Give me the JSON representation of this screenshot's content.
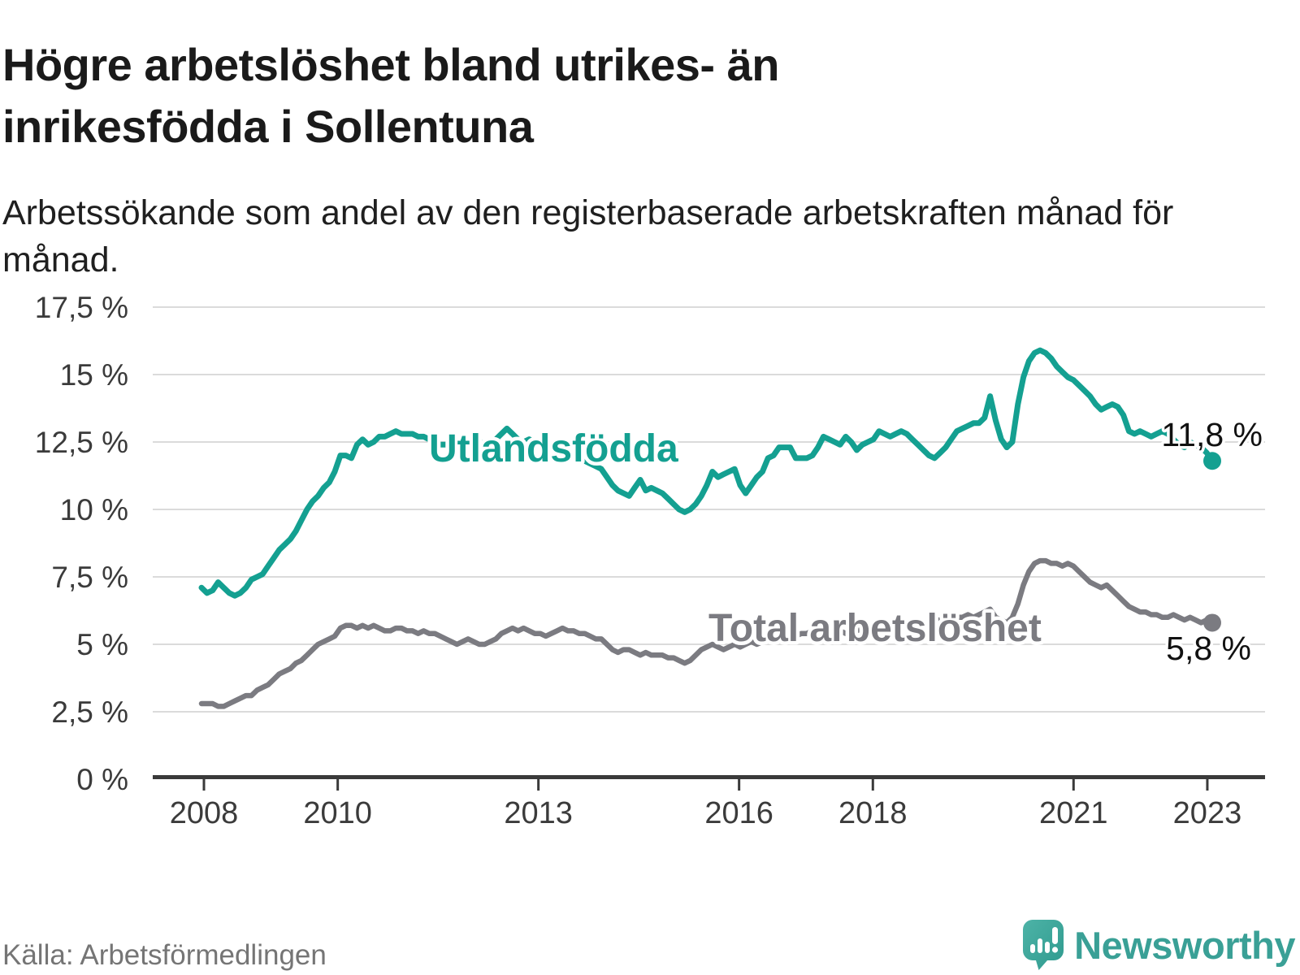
{
  "header": {
    "title": "Högre arbetslöshet bland utrikes- än inrikesfödda i Sollentuna",
    "subtitle": "Arbetssökande som andel av den registerbaserade arbetskraften månad för månad."
  },
  "footer": {
    "source": "Källa: Arbetsförmedlingen",
    "brand": "Newsworthy",
    "brand_icon": "newsworthy-speech-bubble-bar-chart-icon"
  },
  "colors": {
    "foreign_born_line": "#14a091",
    "total_line": "#7b7b81",
    "grid": "#dbdbdb",
    "axis": "#3a3a3a",
    "tick_text": "#3b3b3b",
    "heading_text": "#1a1a1a",
    "value_label_text": "#111111",
    "source_text": "#757575",
    "brand_teal": "#3aa096"
  },
  "chart_data": {
    "type": "line",
    "title": "Högre arbetslöshet bland utrikes- än inrikesfödda i Sollentuna",
    "subtitle": "Arbetssökande som andel av den registerbaserade arbetskraften månad för månad.",
    "frequency": "monthly",
    "x_start": "2008-01",
    "x_end": "2023-03",
    "ylim": [
      0,
      17.5
    ],
    "grid": "horizontal",
    "legend_position": "inline-labels",
    "y_ticks": [
      {
        "value": 0,
        "label": "0 %"
      },
      {
        "value": 2.5,
        "label": "2,5 %"
      },
      {
        "value": 5,
        "label": "5 %"
      },
      {
        "value": 7.5,
        "label": "7,5 %"
      },
      {
        "value": 10,
        "label": "10 %"
      },
      {
        "value": 12.5,
        "label": "12,5 %"
      },
      {
        "value": 15,
        "label": "15 %"
      },
      {
        "value": 17.5,
        "label": "17,5 %"
      }
    ],
    "x_ticks": [
      {
        "year": 2008,
        "label": "2008"
      },
      {
        "year": 2010,
        "label": "2010"
      },
      {
        "year": 2013,
        "label": "2013"
      },
      {
        "year": 2016,
        "label": "2016"
      },
      {
        "year": 2018,
        "label": "2018"
      },
      {
        "year": 2021,
        "label": "2021"
      },
      {
        "year": 2023,
        "label": "2023"
      }
    ],
    "series": [
      {
        "name": "Utlandsfödda",
        "color": "#14a091",
        "end_label": "11,8 %",
        "last_value": 11.8,
        "values": [
          7.1,
          6.9,
          7.0,
          7.3,
          7.1,
          6.9,
          6.8,
          6.9,
          7.1,
          7.4,
          7.5,
          7.6,
          7.9,
          8.2,
          8.5,
          8.7,
          8.9,
          9.2,
          9.6,
          10.0,
          10.3,
          10.5,
          10.8,
          11.0,
          11.4,
          12.0,
          12.0,
          11.9,
          12.4,
          12.6,
          12.4,
          12.5,
          12.7,
          12.7,
          12.8,
          12.9,
          12.8,
          12.8,
          12.8,
          12.7,
          12.7,
          12.6,
          12.5,
          12.4,
          12.4,
          12.5,
          12.4,
          12.4,
          12.4,
          12.3,
          12.4,
          12.5,
          12.4,
          12.6,
          12.8,
          13.0,
          12.8,
          12.6,
          12.5,
          12.6,
          12.5,
          12.4,
          12.3,
          12.4,
          12.3,
          12.2,
          12.1,
          12.0,
          11.9,
          11.8,
          11.7,
          11.6,
          11.5,
          11.2,
          10.9,
          10.7,
          10.6,
          10.5,
          10.8,
          11.1,
          10.7,
          10.8,
          10.7,
          10.6,
          10.4,
          10.2,
          10.0,
          9.9,
          10.0,
          10.2,
          10.5,
          10.9,
          11.4,
          11.2,
          11.3,
          11.4,
          11.5,
          10.9,
          10.6,
          10.9,
          11.2,
          11.4,
          11.9,
          12.0,
          12.3,
          12.3,
          12.3,
          11.9,
          11.9,
          11.9,
          12.0,
          12.3,
          12.7,
          12.6,
          12.5,
          12.4,
          12.7,
          12.5,
          12.2,
          12.4,
          12.5,
          12.6,
          12.9,
          12.8,
          12.7,
          12.8,
          12.9,
          12.8,
          12.6,
          12.4,
          12.2,
          12.0,
          11.9,
          12.1,
          12.3,
          12.6,
          12.9,
          13.0,
          13.1,
          13.2,
          13.2,
          13.4,
          14.2,
          13.3,
          12.6,
          12.3,
          12.5,
          13.9,
          14.9,
          15.5,
          15.8,
          15.9,
          15.8,
          15.6,
          15.3,
          15.1,
          14.9,
          14.8,
          14.6,
          14.4,
          14.2,
          13.9,
          13.7,
          13.8,
          13.9,
          13.8,
          13.5,
          12.9,
          12.8,
          12.9,
          12.8,
          12.7,
          12.8,
          12.9,
          12.8,
          12.6,
          12.4,
          12.3,
          12.5,
          12.4,
          12.3,
          12.1,
          11.8
        ]
      },
      {
        "name": "Total arbetslöshet",
        "color": "#7b7b81",
        "end_label": "5,8 %",
        "last_value": 5.8,
        "values": [
          2.8,
          2.8,
          2.8,
          2.7,
          2.7,
          2.8,
          2.9,
          3.0,
          3.1,
          3.1,
          3.3,
          3.4,
          3.5,
          3.7,
          3.9,
          4.0,
          4.1,
          4.3,
          4.4,
          4.6,
          4.8,
          5.0,
          5.1,
          5.2,
          5.3,
          5.6,
          5.7,
          5.7,
          5.6,
          5.7,
          5.6,
          5.7,
          5.6,
          5.5,
          5.5,
          5.6,
          5.6,
          5.5,
          5.5,
          5.4,
          5.5,
          5.4,
          5.4,
          5.3,
          5.2,
          5.1,
          5.0,
          5.1,
          5.2,
          5.1,
          5.0,
          5.0,
          5.1,
          5.2,
          5.4,
          5.5,
          5.6,
          5.5,
          5.6,
          5.5,
          5.4,
          5.4,
          5.3,
          5.4,
          5.5,
          5.6,
          5.5,
          5.5,
          5.4,
          5.4,
          5.3,
          5.2,
          5.2,
          5.0,
          4.8,
          4.7,
          4.8,
          4.8,
          4.7,
          4.6,
          4.7,
          4.6,
          4.6,
          4.6,
          4.5,
          4.5,
          4.4,
          4.3,
          4.4,
          4.6,
          4.8,
          4.9,
          5.0,
          4.9,
          4.8,
          4.9,
          5.0,
          4.9,
          5.0,
          5.1,
          5.0,
          5.1,
          5.2,
          5.2,
          5.3,
          5.2,
          5.3,
          5.3,
          5.4,
          5.4,
          5.5,
          5.4,
          5.5,
          5.5,
          5.6,
          5.5,
          5.4,
          5.5,
          5.5,
          5.6,
          5.6,
          5.5,
          5.6,
          5.6,
          5.5,
          5.6,
          5.6,
          5.7,
          5.6,
          5.7,
          5.8,
          5.8,
          5.9,
          5.9,
          6.0,
          5.9,
          6.0,
          6.0,
          6.1,
          6.0,
          6.1,
          6.2,
          6.3,
          6.0,
          5.9,
          5.8,
          6.0,
          6.5,
          7.2,
          7.7,
          8.0,
          8.1,
          8.1,
          8.0,
          8.0,
          7.9,
          8.0,
          7.9,
          7.7,
          7.5,
          7.3,
          7.2,
          7.1,
          7.2,
          7.0,
          6.8,
          6.6,
          6.4,
          6.3,
          6.2,
          6.2,
          6.1,
          6.1,
          6.0,
          6.0,
          6.1,
          6.0,
          5.9,
          6.0,
          5.9,
          5.8,
          5.9,
          5.8
        ]
      }
    ]
  }
}
